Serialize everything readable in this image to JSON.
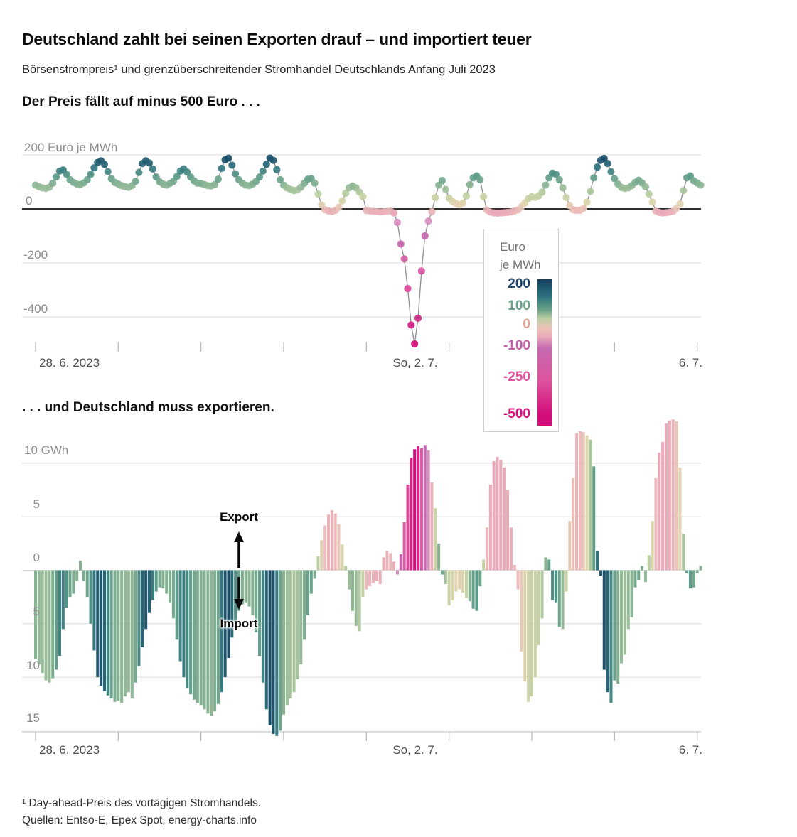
{
  "header": {
    "title": "Deutschland zahlt bei seinen Exporten drauf – und importiert teuer",
    "subtitle": "Börsenstrompreis¹ und grenzüberschreitender Stromhandel Deutschlands Anfang Juli 2023"
  },
  "price_panel": {
    "heading": "Der Preis fällt auf minus 500 Euro . . .",
    "unit_label": "200 Euro je MWh",
    "ytick_labels": [
      "0",
      "-200",
      "-400"
    ],
    "xtick_labels": {
      "start": "28. 6. 2023",
      "middle": "So, 2. 7.",
      "end": "6. 7."
    }
  },
  "legend": {
    "title_line1": "Euro",
    "title_line2": "je MWh",
    "entries": [
      {
        "label": "200",
        "value": 200,
        "color": "#1b4369"
      },
      {
        "label": "100",
        "value": 100,
        "color": "#6ba287"
      },
      {
        "label": "0",
        "value": 0,
        "color": "#e2a195"
      },
      {
        "label": "-100",
        "value": -100,
        "color": "#c45fa9"
      },
      {
        "label": "-250",
        "value": -250,
        "color": "#e14f9d"
      },
      {
        "label": "-500",
        "value": -500,
        "color": "#d60f79"
      }
    ],
    "gradient_stops": [
      [
        0,
        "#123f60"
      ],
      [
        12,
        "#2e737f"
      ],
      [
        21,
        "#6ba287"
      ],
      [
        27,
        "#bccfa3"
      ],
      [
        33,
        "#ecc4b9"
      ],
      [
        39,
        "#eaadb9"
      ],
      [
        47,
        "#c46ab1"
      ],
      [
        68,
        "#dd559e"
      ],
      [
        93,
        "#d30c7b"
      ],
      [
        100,
        "#d30c7b"
      ]
    ]
  },
  "trade_panel": {
    "heading": ". . . und Deutschland muss exportieren.",
    "unit_label": "10 GWh",
    "ytick_labels": [
      "5",
      "0",
      "5",
      "10",
      "15"
    ],
    "xtick_labels": {
      "start": "28. 6. 2023",
      "middle": "So, 2. 7.",
      "end": "6. 7."
    },
    "annotations": {
      "export": "Export",
      "import": "Import"
    }
  },
  "footnotes": {
    "note": "¹ Day-ahead-Preis des vortägigen Stromhandels.",
    "sources": "Quellen: Entso-E, Epex Spot, energy-charts.info"
  },
  "color_scale": {
    "unit": "Euro je MWh",
    "stops": [
      [
        -500,
        "#d30c7b"
      ],
      [
        -250,
        "#dd559e"
      ],
      [
        -100,
        "#c46ab1"
      ],
      [
        -45,
        "#da8fbe"
      ],
      [
        -12,
        "#eaadb9"
      ],
      [
        0,
        "#ecc4b9"
      ],
      [
        25,
        "#dcd6ab"
      ],
      [
        55,
        "#bccfa3"
      ],
      [
        90,
        "#86b293"
      ],
      [
        120,
        "#5d9c89"
      ],
      [
        155,
        "#2e737f"
      ],
      [
        200,
        "#123f60"
      ]
    ]
  },
  "chart_data": [
    {
      "type": "scatter",
      "title": "Der Preis fällt auf minus 500 Euro . . .",
      "ylabel": "Euro je MWh",
      "x_unit": "hours from 2023-06-28 00:00 to 2023-07-06 01:00",
      "ylim": [
        -520,
        210
      ],
      "gridlines": [
        200,
        0,
        -200,
        -400
      ],
      "x_tick_labels_visible": [
        "28. 6. 2023",
        "So, 2. 7.",
        "6. 7."
      ],
      "x_tick_days": 9,
      "values": [
        88,
        82,
        78,
        76,
        80,
        95,
        118,
        140,
        144,
        128,
        108,
        98,
        92,
        90,
        96,
        108,
        128,
        152,
        172,
        178,
        165,
        138,
        112,
        98,
        92,
        86,
        82,
        80,
        86,
        102,
        135,
        168,
        178,
        170,
        148,
        118,
        100,
        92,
        88,
        94,
        102,
        120,
        140,
        148,
        136,
        118,
        104,
        95,
        94,
        90,
        86,
        85,
        90,
        110,
        150,
        182,
        188,
        162,
        130,
        108,
        95,
        88,
        86,
        92,
        102,
        118,
        140,
        165,
        188,
        180,
        145,
        108,
        88,
        78,
        72,
        68,
        70,
        80,
        95,
        110,
        112,
        95,
        55,
        15,
        -3,
        -8,
        -10,
        -6,
        6,
        30,
        58,
        78,
        85,
        78,
        62,
        45,
        -6,
        -8,
        -9,
        -10,
        -11,
        -10,
        -9,
        -8,
        -15,
        -50,
        -130,
        -185,
        -295,
        -430,
        -500,
        -405,
        -230,
        -100,
        -45,
        -10,
        42,
        88,
        105,
        72,
        40,
        28,
        20,
        15,
        22,
        48,
        90,
        115,
        122,
        108,
        45,
        -5,
        -12,
        -15,
        -16,
        -15,
        -14,
        -13,
        -11,
        -8,
        -4,
        8,
        22,
        38,
        45,
        42,
        48,
        62,
        88,
        115,
        132,
        128,
        108,
        78,
        42,
        12,
        -3,
        -6,
        -5,
        2,
        25,
        65,
        115,
        155,
        180,
        187,
        168,
        138,
        112,
        92,
        80,
        76,
        78,
        86,
        98,
        106,
        96,
        82,
        55,
        25,
        -8,
        -13,
        -15,
        -14,
        -12,
        -9,
        2,
        18,
        68,
        115,
        122,
        104,
        96,
        88
      ]
    },
    {
      "type": "bar",
      "title": ". . . und Deutschland muss exportieren.",
      "ylabel": "GWh",
      "positive_means": "Export",
      "negative_means": "Import",
      "x_unit": "hours from 2023-06-28 00:00 to 2023-07-06 01:00",
      "ylim": [
        -15.5,
        14.5
      ],
      "gridlines": [
        10,
        5,
        0,
        -5,
        -10,
        -15
      ],
      "x_tick_labels_visible": [
        "28. 6. 2023",
        "So, 2. 7.",
        "6. 7."
      ],
      "x_tick_days": 9,
      "color_by": "price series (Euro je MWh) of same hour",
      "values": [
        -8.3,
        -8.8,
        -9.6,
        -10.3,
        -10.5,
        -10.1,
        -9.3,
        -8,
        -5.5,
        -3.5,
        -2.5,
        -2.2,
        -1,
        0.9,
        -1,
        -2.5,
        -5,
        -7.5,
        -10,
        -10.8,
        -11.3,
        -11.7,
        -12,
        -12.3,
        -12.2,
        -12.4,
        -11.8,
        -11.4,
        -12,
        -10.5,
        -9,
        -7.2,
        -5.5,
        -4,
        -2.8,
        -2,
        -1.6,
        -1.7,
        -2.2,
        -3,
        -4.5,
        -6.5,
        -8.5,
        -10,
        -11,
        -11.6,
        -12.1,
        -12.4,
        -12.6,
        -13,
        -13.4,
        -13.6,
        -13.2,
        -12.5,
        -11.4,
        -10,
        -8.2,
        -6.3,
        -4.8,
        -3.8,
        -3.2,
        -3,
        -3.4,
        -4.2,
        -5.8,
        -8,
        -10.5,
        -13,
        -14.5,
        -15.3,
        -15.5,
        -15,
        -13.5,
        -12.6,
        -12,
        -11.4,
        -10.2,
        -8.8,
        -6.5,
        -4.2,
        -2.2,
        -0.8,
        1.3,
        2.8,
        4.2,
        5.2,
        5.6,
        5.3,
        4.3,
        2.4,
        0.4,
        -1.8,
        -3.8,
        -5.2,
        -5.7,
        -2.5,
        -1.8,
        -1.5,
        -1.2,
        -1,
        -1.3,
        1.2,
        1.8,
        1.6,
        0.8,
        -0.4,
        1.5,
        4.5,
        8,
        10.5,
        11.3,
        11.6,
        11.4,
        11.7,
        11.2,
        8.2,
        5.8,
        2.5,
        -0.4,
        -1.3,
        -3.3,
        -2.8,
        -2,
        -1.8,
        -2.1,
        -2.6,
        -2.9,
        -3.6,
        -3.8,
        -1.5,
        1,
        4,
        8,
        10.2,
        10.6,
        10.3,
        9.6,
        7.5,
        4,
        0.5,
        -1.8,
        -7.6,
        -10.4,
        -12.3,
        -11.8,
        -10,
        -7,
        -4.5,
        1.2,
        1,
        -2.8,
        -3,
        -5.3,
        -5.5,
        -2,
        4.6,
        8.6,
        12.8,
        13,
        12.9,
        12.6,
        12.2,
        9.7,
        1.8,
        -0.5,
        -9.3,
        -11.4,
        -12.4,
        -10.3,
        -10.6,
        -8.7,
        -7.9,
        -5.5,
        -4.4,
        -1.6,
        -0.9,
        0.4,
        -1.1,
        1.4,
        4.6,
        8.6,
        11,
        12,
        13.7,
        14,
        14.1,
        13.9,
        9.6,
        3.4,
        -0.3,
        -1.7,
        -1.6,
        -0.3,
        0.4
      ]
    }
  ]
}
